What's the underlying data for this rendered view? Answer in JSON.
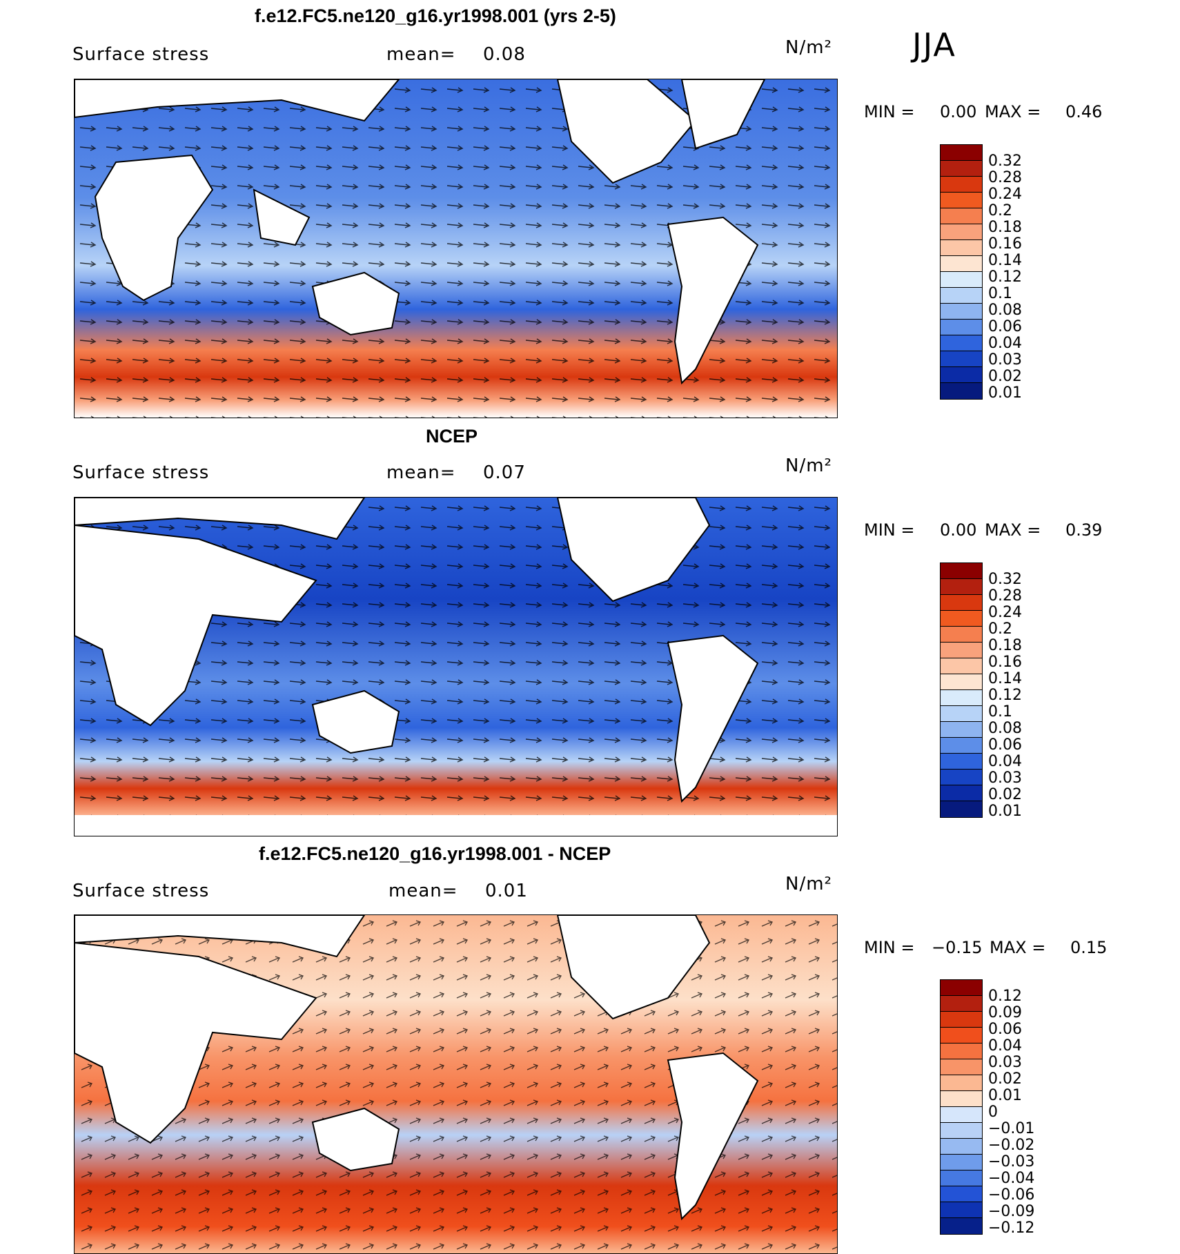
{
  "season": "JJA",
  "units_label": "N/m²",
  "chart_data": [
    {
      "type": "heatmap",
      "title": "f.e12.FC5.ne120_g16.yr1998.001 (yrs 2-5)",
      "variable": "Surface stress",
      "mean_label": "mean=",
      "mean": "0.08",
      "min_label": "MIN =",
      "min": "0.00",
      "max_label": "MAX =",
      "max": "0.46",
      "colorbar_ticks": [
        "0.32",
        "0.28",
        "0.24",
        "0.2",
        "0.18",
        "0.16",
        "0.14",
        "0.12",
        "0.1",
        "0.08",
        "0.06",
        "0.04",
        "0.03",
        "0.02",
        "0.01"
      ],
      "colorbar_colors": [
        "#8b0000",
        "#b3200f",
        "#d9380f",
        "#f05a20",
        "#f57f4f",
        "#f9a27c",
        "#fcc6a7",
        "#fde5d2",
        "#d9ebfb",
        "#b7d3f7",
        "#8eb4f0",
        "#5d8ee8",
        "#2f64dd",
        "#1744c4",
        "#0b2ba6",
        "#061a7e"
      ]
    },
    {
      "type": "heatmap",
      "title": "NCEP",
      "variable": "Surface stress",
      "mean_label": "mean=",
      "mean": "0.07",
      "min_label": "MIN =",
      "min": "0.00",
      "max_label": "MAX =",
      "max": "0.39",
      "colorbar_ticks": [
        "0.32",
        "0.28",
        "0.24",
        "0.2",
        "0.18",
        "0.16",
        "0.14",
        "0.12",
        "0.1",
        "0.08",
        "0.06",
        "0.04",
        "0.03",
        "0.02",
        "0.01"
      ],
      "colorbar_colors": [
        "#8b0000",
        "#b3200f",
        "#d9380f",
        "#f05a20",
        "#f57f4f",
        "#f9a27c",
        "#fcc6a7",
        "#fde5d2",
        "#d9ebfb",
        "#b7d3f7",
        "#8eb4f0",
        "#5d8ee8",
        "#2f64dd",
        "#1744c4",
        "#0b2ba6",
        "#061a7e"
      ]
    },
    {
      "type": "heatmap",
      "title": "f.e12.FC5.ne120_g16.yr1998.001 - NCEP",
      "variable": "Surface stress",
      "mean_label": "mean=",
      "mean": "0.01",
      "min_label": "MIN =",
      "min": "−0.15",
      "max_label": "MAX =",
      "max": "0.15",
      "colorbar_ticks": [
        "0.12",
        "0.09",
        "0.06",
        "0.04",
        "0.03",
        "0.02",
        "0.01",
        "0",
        "−0.01",
        "−0.02",
        "−0.03",
        "−0.04",
        "−0.06",
        "−0.09",
        "−0.12"
      ],
      "colorbar_colors": [
        "#8b0000",
        "#b3200f",
        "#d9380f",
        "#f04f1c",
        "#f57240",
        "#f89468",
        "#fbb892",
        "#fde0c9",
        "#d6e6fb",
        "#b8d1f6",
        "#97baf1",
        "#6f9ceb",
        "#4679e2",
        "#2353d6",
        "#0e33b3",
        "#06208a"
      ]
    }
  ]
}
